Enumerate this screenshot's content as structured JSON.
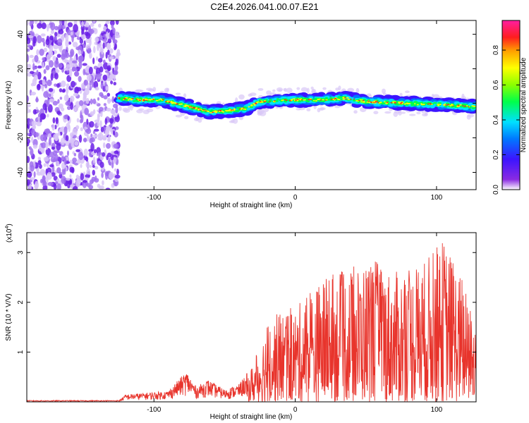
{
  "title": "C2E4.2026.041.00.07.E21",
  "chart_data": [
    {
      "type": "heatmap",
      "name": "spectrogram",
      "xlabel": "Height of straight line (km)",
      "ylabel": "Frequency (Hz)",
      "xlim": [
        -190,
        128
      ],
      "ylim": [
        -50,
        48
      ],
      "xticks": [
        -100,
        0,
        100
      ],
      "yticks": [
        -40,
        -20,
        0,
        20,
        40
      ],
      "noise_region_x": [
        -190,
        -125
      ],
      "signal_start_x": -125,
      "ridge": [
        {
          "x": -125,
          "y": 3
        },
        {
          "x": -110,
          "y": 2
        },
        {
          "x": -95,
          "y": 2
        },
        {
          "x": -85,
          "y": 0
        },
        {
          "x": -75,
          "y": -2
        },
        {
          "x": -60,
          "y": -5
        },
        {
          "x": -45,
          "y": -4
        },
        {
          "x": -35,
          "y": -3
        },
        {
          "x": -25,
          "y": 1
        },
        {
          "x": 0,
          "y": 2
        },
        {
          "x": 20,
          "y": 2
        },
        {
          "x": 35,
          "y": 3
        },
        {
          "x": 50,
          "y": 1
        },
        {
          "x": 80,
          "y": 0
        },
        {
          "x": 110,
          "y": -1
        },
        {
          "x": 128,
          "y": -2
        }
      ],
      "colorbar": {
        "label": "Normalized spectral amplitude",
        "range": [
          0,
          0.97
        ],
        "ticks": [
          0.0,
          0.2,
          0.4,
          0.6,
          0.8
        ]
      }
    },
    {
      "type": "line",
      "name": "snr",
      "xlabel": "Height of straight line (km)",
      "ylabel": "SNR (10 * V/V)",
      "multiplier_label": "(x10",
      "multiplier_exp": "4",
      "multiplier_close": ")",
      "xlim": [
        -190,
        128
      ],
      "ylim": [
        0,
        3.4
      ],
      "xticks": [
        -100,
        0,
        100
      ],
      "yticks": [
        1,
        2,
        3
      ],
      "series_color": "#e8342c",
      "envelope": [
        {
          "x": -190,
          "y": 0.02
        },
        {
          "x": -125,
          "y": 0.02
        },
        {
          "x": -120,
          "y": 0.15
        },
        {
          "x": -90,
          "y": 0.22
        },
        {
          "x": -77,
          "y": 0.62
        },
        {
          "x": -70,
          "y": 0.3
        },
        {
          "x": -62,
          "y": 0.45
        },
        {
          "x": -50,
          "y": 0.25
        },
        {
          "x": -40,
          "y": 0.35
        },
        {
          "x": -30,
          "y": 0.75
        },
        {
          "x": -20,
          "y": 1.6
        },
        {
          "x": -10,
          "y": 1.85
        },
        {
          "x": 0,
          "y": 1.9
        },
        {
          "x": 20,
          "y": 2.5
        },
        {
          "x": 40,
          "y": 2.7
        },
        {
          "x": 55,
          "y": 2.9
        },
        {
          "x": 70,
          "y": 2.6
        },
        {
          "x": 90,
          "y": 2.8
        },
        {
          "x": 105,
          "y": 3.3
        },
        {
          "x": 118,
          "y": 2.5
        },
        {
          "x": 128,
          "y": 1.5
        }
      ]
    }
  ]
}
